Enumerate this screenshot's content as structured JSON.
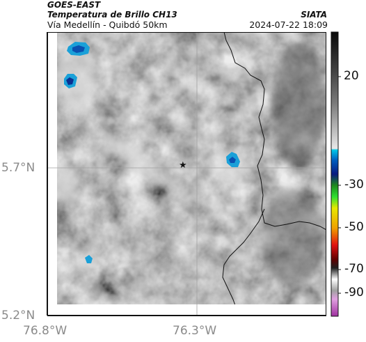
{
  "header": {
    "title_line1": "GOES-EAST",
    "title_line2": "Temperatura de Brillo CH13",
    "subtitle": "Vía Medellín - Quibdó 50km",
    "agency": "SIATA",
    "datetime": "2024-07-22 18:09"
  },
  "axes": {
    "lat_ticks": [
      "5.7°N",
      "5.2°N"
    ],
    "lon_ticks": [
      "76.8°W",
      "76.3°W"
    ]
  },
  "colorbar": {
    "tick_labels": [
      "20",
      "-30",
      "-50",
      "-70",
      "-90"
    ]
  },
  "map": {
    "marker_symbol": "★",
    "background_style": "grayscale brightness temperature",
    "cold_cloud_color": "#1aa0d8"
  }
}
